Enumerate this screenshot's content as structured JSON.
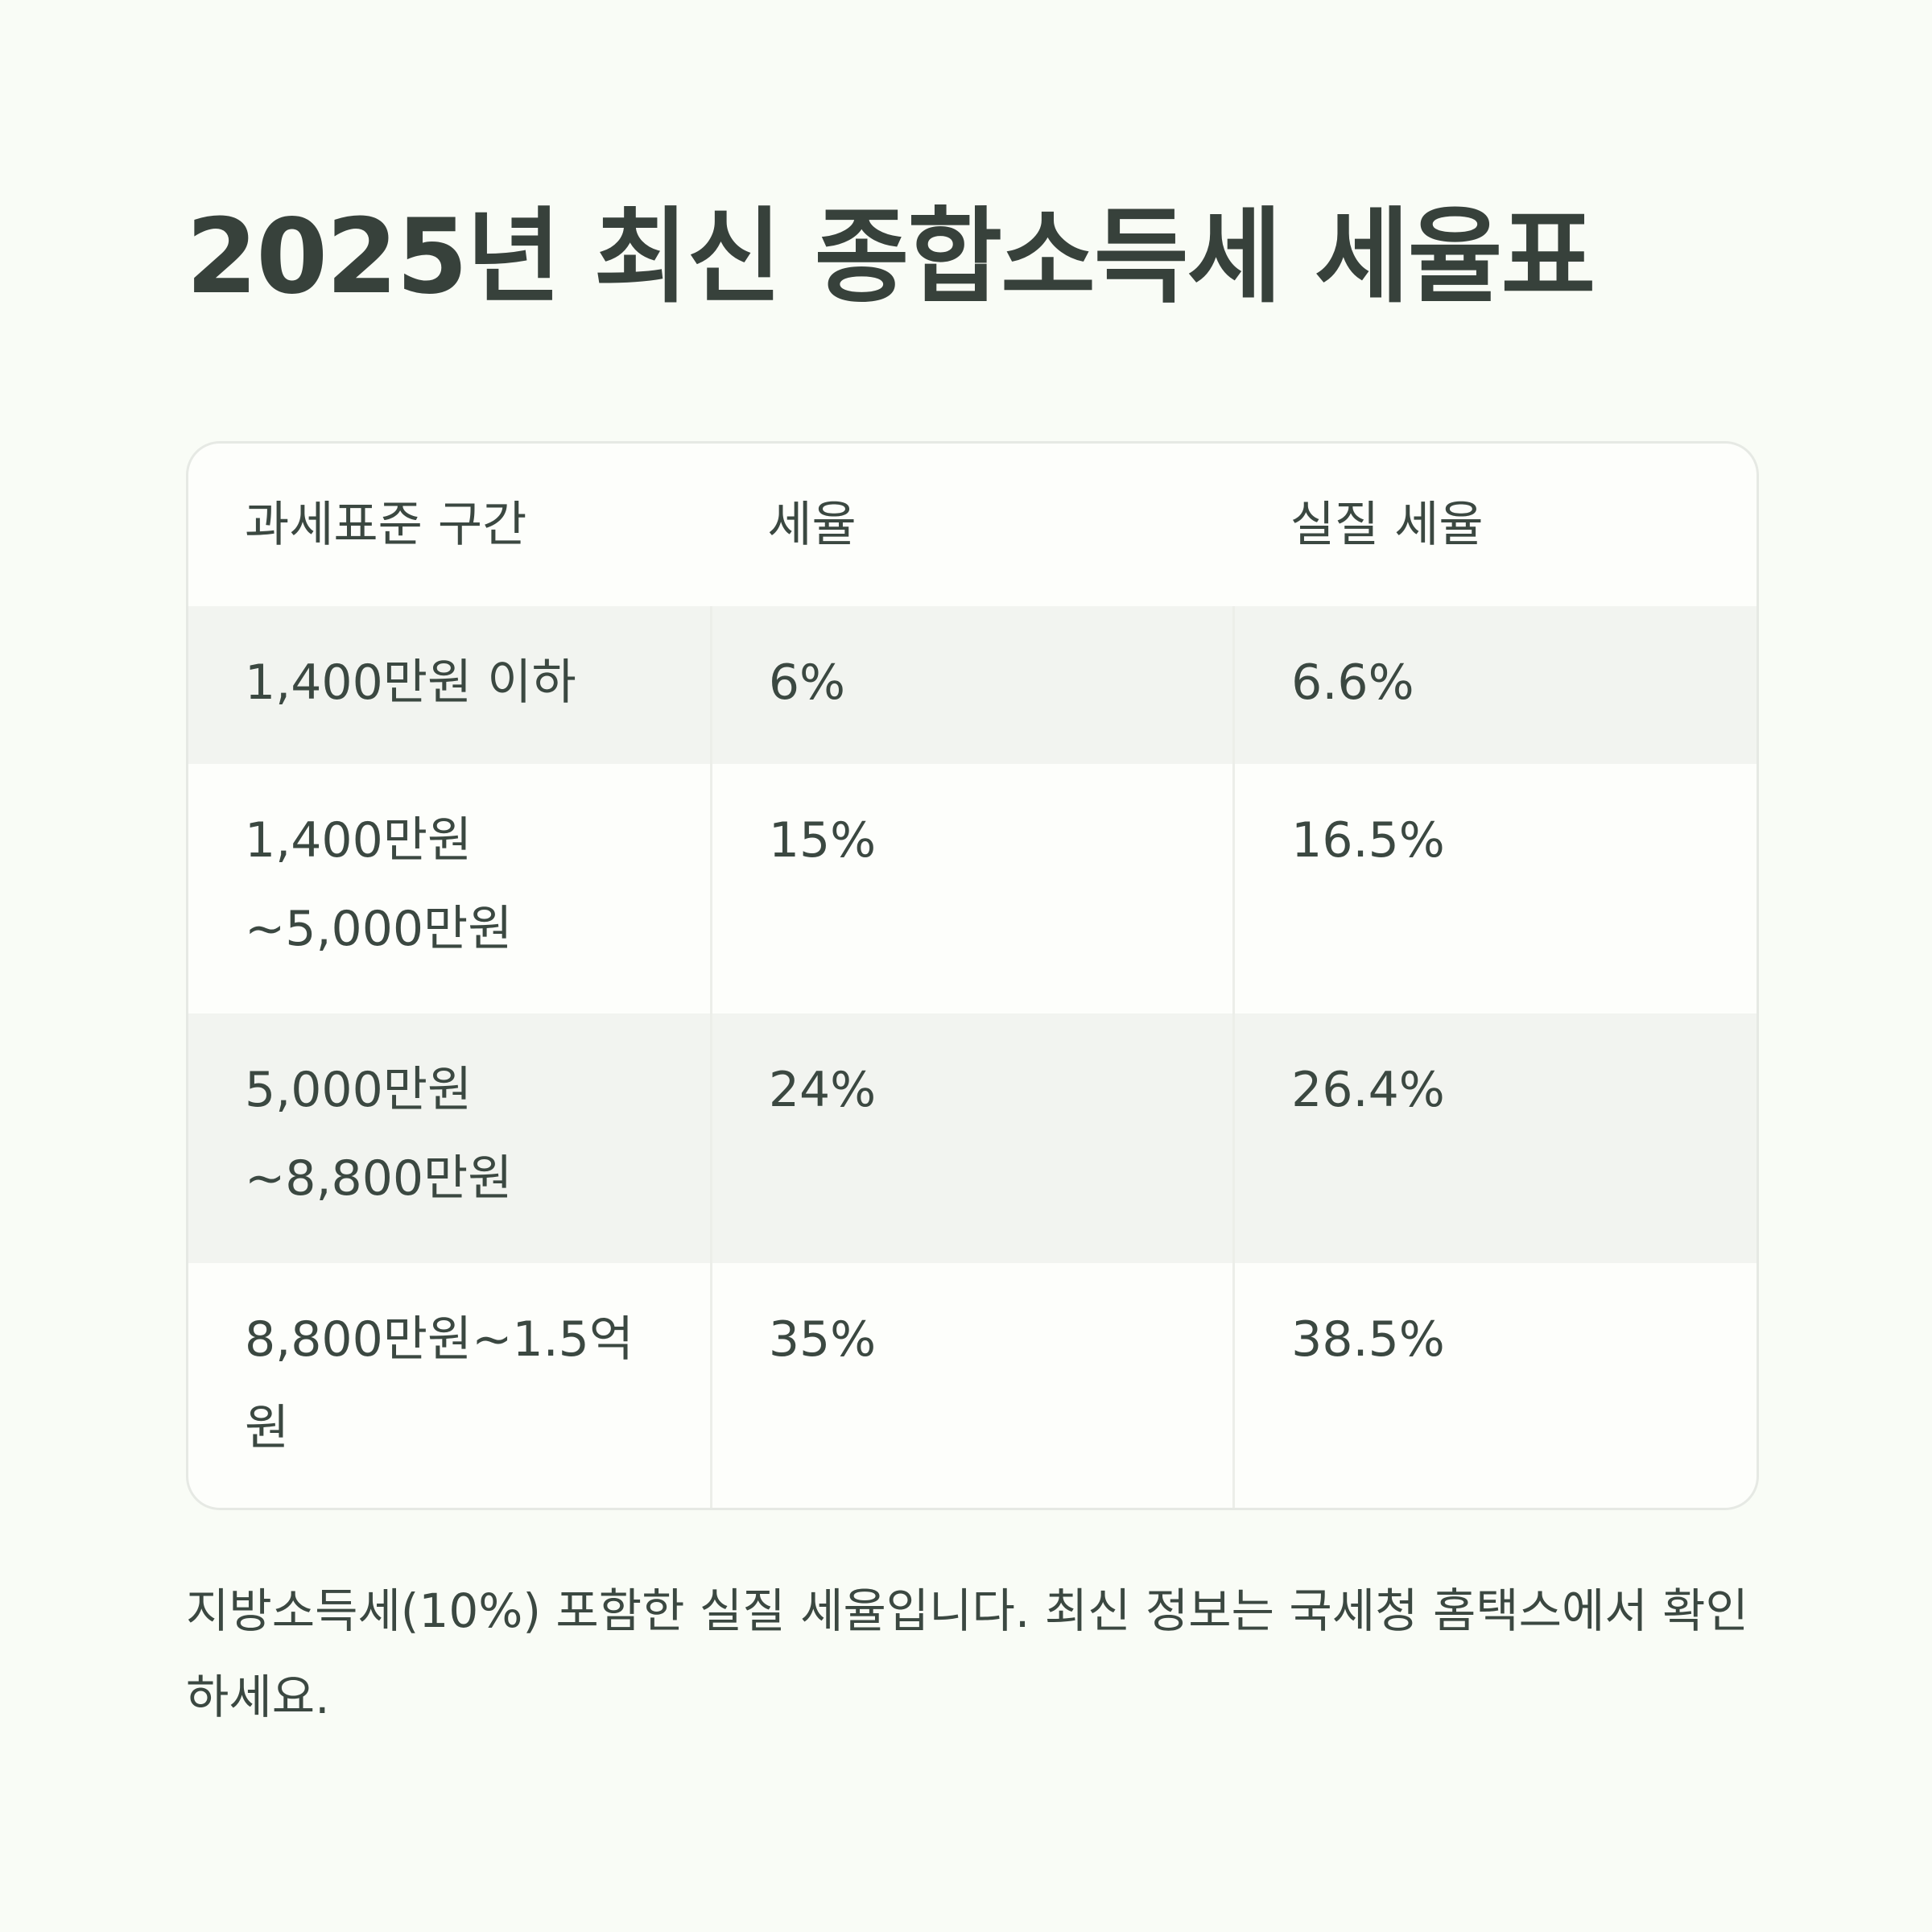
{
  "title": "2025년 최신 종합소득세 세율표",
  "table": {
    "headers": [
      "과세표준 구간",
      "세율",
      "실질 세율"
    ],
    "rows": [
      {
        "bracket_line1": "1,400만원 이하",
        "bracket_line2": "",
        "rate": "6%",
        "effective_rate": "6.6%"
      },
      {
        "bracket_line1": "1,400만원",
        "bracket_line2": "~5,000만원",
        "rate": "15%",
        "effective_rate": "16.5%"
      },
      {
        "bracket_line1": "5,000만원",
        "bracket_line2": "~8,800만원",
        "rate": "24%",
        "effective_rate": "26.4%"
      },
      {
        "bracket_line1": "8,800만원~1.5억",
        "bracket_line2": "원",
        "rate": "35%",
        "effective_rate": "38.5%"
      }
    ]
  },
  "footnote": "지방소득세(10%) 포함한 실질 세율입니다. 최신 정보는 국세청 홈택스에서 확인하세요.",
  "colors": {
    "background": "#f9fcf6",
    "text": "#3b4841",
    "row_shade": "#f2f4f0",
    "border": "#e6e9e4"
  }
}
